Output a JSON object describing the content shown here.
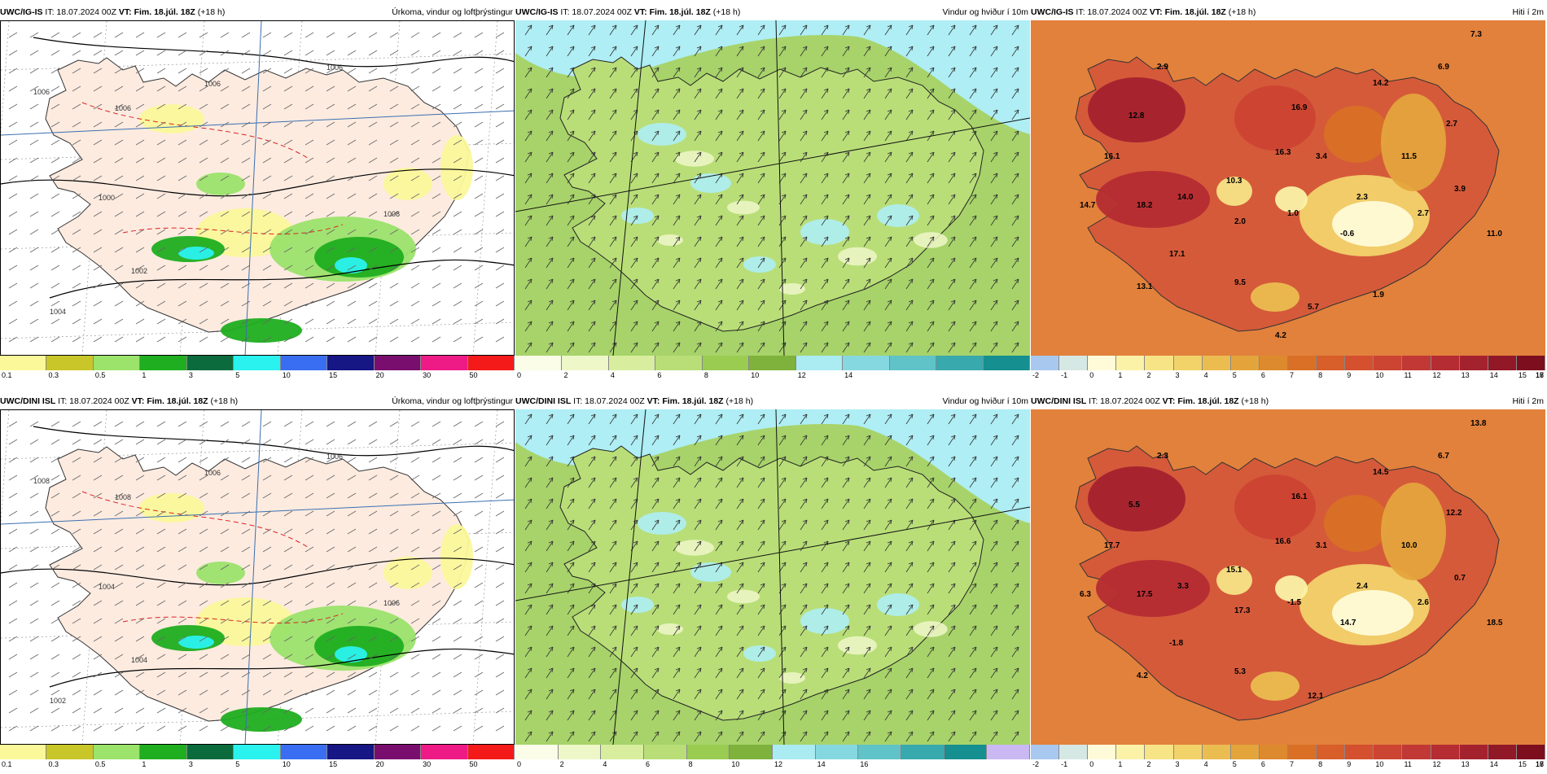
{
  "panels": [
    {
      "model": "UWC/IG-IS",
      "it": "IT: 18.07.2024 00Z",
      "vt": "VT: Fim. 18.júl. 18Z",
      "lead": "(+18 h)",
      "title": "Úrkoma, vindur og loftþrýstingur",
      "kind": "precip",
      "colorbar": {
        "colors": [
          "#fbf89a",
          "#c9c62a",
          "#9be36b",
          "#1fae1f",
          "#0b6b3c",
          "#2af2ee",
          "#3a6ef2",
          "#161684",
          "#7a0e6e",
          "#ee1b86",
          "#f41a1a"
        ],
        "labels": [
          "0.1",
          "0.3",
          "0.5",
          "1",
          "3",
          "5",
          "10",
          "15",
          "20",
          "30",
          "50"
        ]
      },
      "map_labels": [
        "1006",
        "1006",
        "1006",
        "1006",
        "1008",
        "1000",
        "1002",
        "1004"
      ]
    },
    {
      "model": "UWC/IG-IS",
      "it": "IT: 18.07.2024 00Z",
      "vt": "VT: Fim. 18.júl. 18Z",
      "lead": "(+18 h)",
      "title": "Vindur og hviður í 10m",
      "kind": "wind",
      "colorbar": {
        "colors": [
          "#fbfde8",
          "#eef7c8",
          "#d8ee9e",
          "#b9de78",
          "#9acc52",
          "#7eb23c",
          "#abebf2",
          "#86d8e0",
          "#5fc3c8",
          "#38a9ad",
          "#168f90"
        ],
        "labels": [
          "0",
          "2",
          "4",
          "6",
          "8",
          "10",
          "12",
          "14"
        ]
      },
      "map_labels": []
    },
    {
      "model": "UWC/IG-IS",
      "it": "IT: 18.07.2024 00Z",
      "vt": "VT: Fim. 18.júl. 18Z",
      "lead": "(+18 h)",
      "title": "Hiti í 2m",
      "kind": "temp",
      "colorbar": {
        "colors": [
          "#a8c8f0",
          "#d6e8e4",
          "#fffbd8",
          "#fbf2a8",
          "#f7e486",
          "#f2d36a",
          "#ebbd50",
          "#e4a43c",
          "#dd8a2e",
          "#d97026",
          "#d85e2a",
          "#d4502e",
          "#cc4432",
          "#c23834",
          "#b52c32",
          "#a4222e",
          "#911826",
          "#7c0e1e"
        ],
        "labels": [
          "-2",
          "-1",
          "0",
          "1",
          "2",
          "3",
          "4",
          "5",
          "6",
          "7",
          "8",
          "9",
          "10",
          "11",
          "12",
          "13",
          "14",
          "15",
          "16",
          "17",
          "18"
        ]
      },
      "map_labels": [
        "7.3",
        "2.9",
        "6.9",
        "14.2",
        "12.8",
        "16.9",
        "2.7",
        "16.1",
        "16.3",
        "3.4",
        "11.5",
        "10.3",
        "14.0",
        "2.3",
        "3.9",
        "14.7",
        "18.2",
        "2.0",
        "1.0",
        "2.7",
        "-0.6",
        "11.0",
        "17.1",
        "9.5",
        "13.1",
        "5.7",
        "1.9",
        "4.2"
      ]
    },
    {
      "model": "UWC/DINI ISL",
      "it": "IT: 18.07.2024 00Z",
      "vt": "VT: Fim. 18.júl. 18Z",
      "lead": "(+18 h)",
      "title": "Úrkoma, vindur og loftþrýstingur",
      "kind": "precip",
      "colorbar": {
        "colors": [
          "#fbf89a",
          "#c9c62a",
          "#9be36b",
          "#1fae1f",
          "#0b6b3c",
          "#2af2ee",
          "#3a6ef2",
          "#161684",
          "#7a0e6e",
          "#ee1b86",
          "#f41a1a"
        ],
        "labels": [
          "0.1",
          "0.3",
          "0.5",
          "1",
          "3",
          "5",
          "10",
          "15",
          "20",
          "30",
          "50"
        ]
      },
      "map_labels": [
        "1008",
        "1008",
        "1006",
        "1006",
        "1006",
        "1004",
        "1004",
        "1002"
      ]
    },
    {
      "model": "UWC/DINI ISL",
      "it": "IT: 18.07.2024 00Z",
      "vt": "VT: Fim. 18.júl. 18Z",
      "lead": "(+18 h)",
      "title": "Vindur og hviður í 10m",
      "kind": "wind",
      "colorbar": {
        "colors": [
          "#fbfde8",
          "#eef7c8",
          "#d8ee9e",
          "#b9de78",
          "#9acc52",
          "#7eb23c",
          "#abebf2",
          "#86d8e0",
          "#5fc3c8",
          "#38a9ad",
          "#168f90",
          "#c9b8f2"
        ],
        "labels": [
          "0",
          "2",
          "4",
          "6",
          "8",
          "10",
          "12",
          "14",
          "16"
        ]
      },
      "map_labels": []
    },
    {
      "model": "UWC/DINI ISL",
      "it": "IT: 18.07.2024 00Z",
      "vt": "VT: Fim. 18.júl. 18Z",
      "lead": "(+18 h)",
      "title": "Hiti í 2m",
      "kind": "temp",
      "colorbar": {
        "colors": [
          "#a8c8f0",
          "#d6e8e4",
          "#fffbd8",
          "#fbf2a8",
          "#f7e486",
          "#f2d36a",
          "#ebbd50",
          "#e4a43c",
          "#dd8a2e",
          "#d97026",
          "#d85e2a",
          "#d4502e",
          "#cc4432",
          "#c23834",
          "#b52c32",
          "#a4222e",
          "#911826",
          "#7c0e1e"
        ],
        "labels": [
          "-2",
          "-1",
          "0",
          "1",
          "2",
          "3",
          "4",
          "5",
          "6",
          "7",
          "8",
          "9",
          "10",
          "11",
          "12",
          "13",
          "14",
          "15",
          "16",
          "17",
          "18"
        ]
      },
      "map_labels": [
        "13.8",
        "2.3",
        "6.7",
        "14.5",
        "5.5",
        "16.1",
        "12.2",
        "17.7",
        "16.6",
        "3.1",
        "10.0",
        "15.1",
        "3.3",
        "2.4",
        "0.7",
        "6.3",
        "17.5",
        "17.3",
        "-1.5",
        "2.6",
        "14.7",
        "18.5",
        "-1.8",
        "5.3",
        "4.2",
        "12.1"
      ]
    }
  ]
}
